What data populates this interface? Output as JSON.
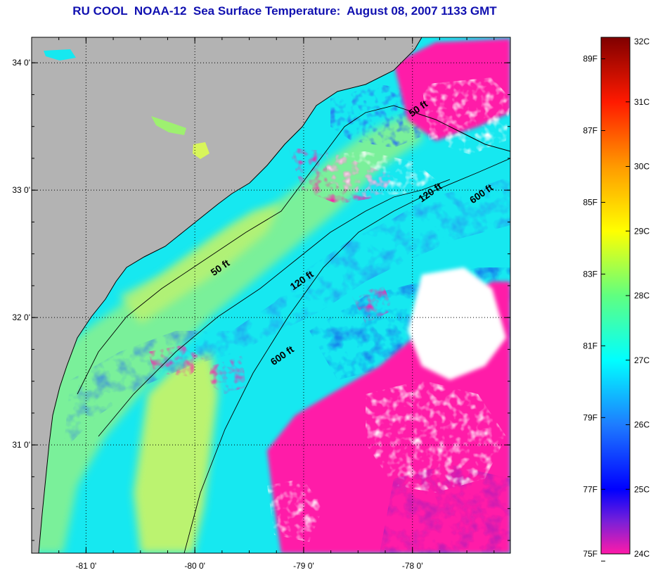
{
  "title": "RU COOL  NOAA-12  Sea Surface Temperature:  August 08, 2007 1133 GMT",
  "colors": {
    "title": "#1010b0",
    "land": "#b3b3b3",
    "cloud": "#ffffff",
    "cold": "#ff1aa8",
    "frame": "#000000"
  },
  "map": {
    "lon_range": [
      -81.5,
      -77.1
    ],
    "lat_range": [
      30.15,
      34.2
    ],
    "lon_ticks": [
      {
        "value": -81,
        "label": "-81 0'"
      },
      {
        "value": -80,
        "label": "-80 0'"
      },
      {
        "value": -79,
        "label": "-79 0'"
      },
      {
        "value": -78,
        "label": "-78 0'"
      }
    ],
    "lat_ticks": [
      {
        "value": 34,
        "label": "34 0'"
      },
      {
        "value": 33,
        "label": "33 0'"
      },
      {
        "value": 32,
        "label": "32 0'"
      },
      {
        "value": 31,
        "label": "31 0'"
      }
    ],
    "minor_tick_step": 0.25,
    "grid": "dotted",
    "contours": [
      {
        "label": "50 ft"
      },
      {
        "label": "120 ft"
      },
      {
        "label": "600 ft"
      }
    ],
    "contour_labels": [
      {
        "text": "50 ft",
        "lon": -79.75,
        "lat": 32.37
      },
      {
        "text": "120 ft",
        "lon": -79.0,
        "lat": 32.27
      },
      {
        "text": "600 ft",
        "lon": -79.18,
        "lat": 31.68
      },
      {
        "text": "50 ft",
        "lon": -77.93,
        "lat": 33.62
      },
      {
        "text": "120 ft",
        "lon": -77.82,
        "lat": 32.96
      },
      {
        "text": "600 ft",
        "lon": -77.35,
        "lat": 32.95
      }
    ]
  },
  "colorbar": {
    "range_c": [
      24,
      32
    ],
    "celsius": [
      "32C",
      "31C",
      "30C",
      "29C",
      "28C",
      "27C",
      "26C",
      "25C",
      "24C"
    ],
    "fahrenheit": [
      "89F",
      "87F",
      "85F",
      "83F",
      "81F",
      "79F",
      "77F",
      "75F"
    ],
    "stops": [
      {
        "c": 24.0,
        "color": "#ff1aa8"
      },
      {
        "c": 24.5,
        "color": "#7a20d8"
      },
      {
        "c": 25.0,
        "color": "#0000ff"
      },
      {
        "c": 26.0,
        "color": "#1e7cff"
      },
      {
        "c": 27.0,
        "color": "#00ffff"
      },
      {
        "c": 28.0,
        "color": "#60ff80"
      },
      {
        "c": 29.0,
        "color": "#ffff00"
      },
      {
        "c": 30.0,
        "color": "#ff9a00"
      },
      {
        "c": 31.0,
        "color": "#ff1a00"
      },
      {
        "c": 32.0,
        "color": "#800000"
      }
    ]
  }
}
